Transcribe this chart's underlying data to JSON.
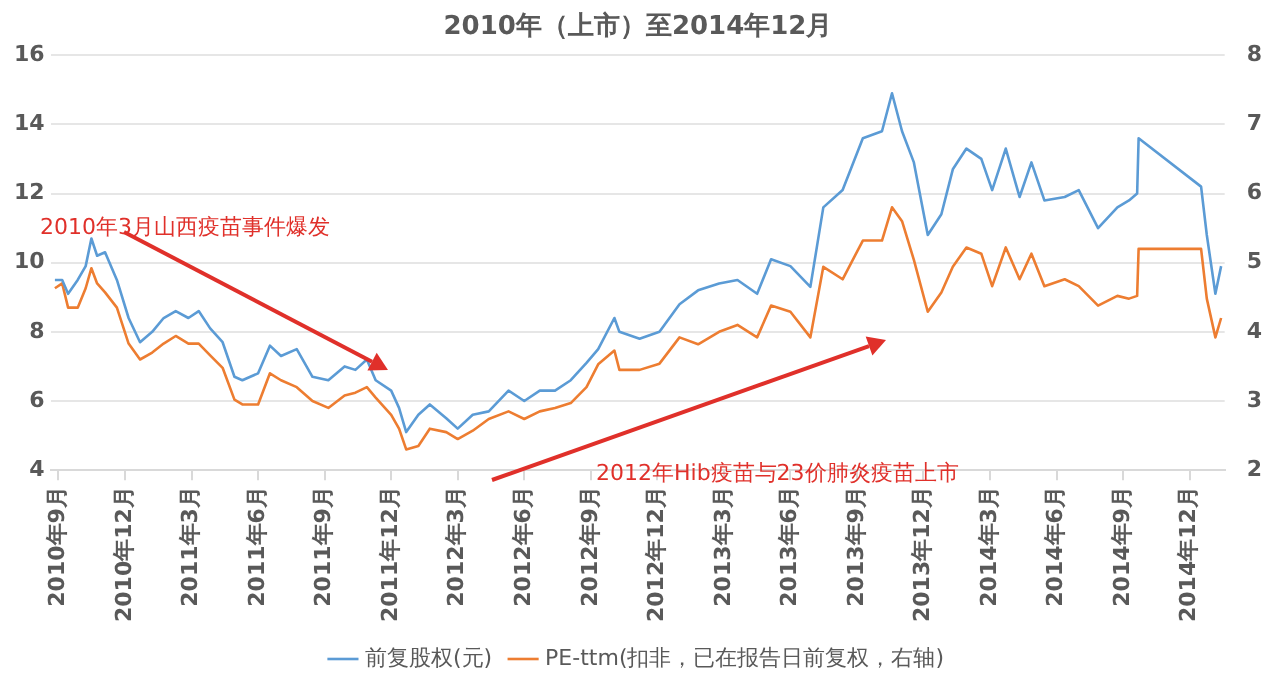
{
  "chart_data": {
    "type": "line",
    "title": "2010年（上市）至2014年12月",
    "annotations": [
      "2010年3月山西疫苗事件爆发",
      "2012年Hib疫苗与23价肺炎疫苗上市"
    ],
    "x": [
      "2010-08-27",
      "2010-09-06",
      "2010-09-14",
      "2010-09-27",
      "2010-10-08",
      "2010-10-16",
      "2010-10-24",
      "2010-11-04",
      "2010-11-20",
      "2010-12-06",
      "2010-12-22",
      "2011-01-08",
      "2011-01-24",
      "2011-02-09",
      "2011-02-25",
      "2011-03-11",
      "2011-03-27",
      "2011-04-13",
      "2011-04-29",
      "2011-05-10",
      "2011-06-01",
      "2011-06-17",
      "2011-07-02",
      "2011-07-24",
      "2011-08-15",
      "2011-09-06",
      "2011-09-28",
      "2011-10-13",
      "2011-10-29",
      "2011-11-10",
      "2011-12-01",
      "2011-12-12",
      "2011-12-22",
      "2012-01-08",
      "2012-01-24",
      "2012-02-15",
      "2012-03-01",
      "2012-03-22",
      "2012-04-13",
      "2012-05-10",
      "2012-06-01",
      "2012-06-22",
      "2012-07-13",
      "2012-08-04",
      "2012-08-26",
      "2012-09-11",
      "2012-10-03",
      "2012-10-10",
      "2012-11-07",
      "2012-12-04",
      "2013-01-01",
      "2013-01-27",
      "2013-02-23",
      "2013-03-20",
      "2013-04-16",
      "2013-05-05",
      "2013-06-01",
      "2013-06-28",
      "2013-07-16",
      "2013-08-12",
      "2013-09-09",
      "2013-10-05",
      "2013-10-19",
      "2013-11-02",
      "2013-11-18",
      "2013-12-07",
      "2013-12-26",
      "2014-01-11",
      "2014-01-30",
      "2014-02-18",
      "2014-03-04",
      "2014-03-23",
      "2014-04-11",
      "2014-04-27",
      "2014-05-15",
      "2014-06-12",
      "2014-07-01",
      "2014-07-28",
      "2014-08-24",
      "2014-09-09",
      "2014-09-20",
      "2014-09-22",
      "2014-11-05",
      "2014-12-17",
      "2014-12-25",
      "2015-01-06",
      "2015-01-14"
    ],
    "series": [
      {
        "name": "前复股权(元)",
        "color": "#5b9bd5",
        "values": [
          9.5,
          9.5,
          9.1,
          9.5,
          9.9,
          10.7,
          10.2,
          10.3,
          9.5,
          8.4,
          7.7,
          8.0,
          8.4,
          8.6,
          8.4,
          8.6,
          8.1,
          7.7,
          6.7,
          6.6,
          6.8,
          7.6,
          7.3,
          7.5,
          6.7,
          6.6,
          7.0,
          6.9,
          7.2,
          6.6,
          6.3,
          5.8,
          5.1,
          5.6,
          5.9,
          5.5,
          5.2,
          5.6,
          5.7,
          6.3,
          6.0,
          6.3,
          6.3,
          6.6,
          7.1,
          7.5,
          8.4,
          8.0,
          7.8,
          8.0,
          8.8,
          9.2,
          9.4,
          9.5,
          9.1,
          10.1,
          9.9,
          9.3,
          11.6,
          12.1,
          13.6,
          13.8,
          14.9,
          13.8,
          12.9,
          10.8,
          11.4,
          12.7,
          13.3,
          13.0,
          12.1,
          13.3,
          11.9,
          12.9,
          11.8,
          11.9,
          12.1,
          11.0,
          11.6,
          11.8,
          12.0,
          13.6,
          null,
          12.2,
          10.8,
          9.1,
          9.9
        ]
      },
      {
        "name": "PE-ttm(扣非，已在报告日前复权，右轴)",
        "color": "#ed7d31",
        "axis": "y2",
        "values": [
          4.63,
          4.7,
          4.35,
          4.35,
          4.63,
          4.92,
          4.7,
          4.57,
          4.35,
          3.83,
          3.6,
          3.7,
          3.83,
          3.94,
          3.83,
          3.83,
          3.66,
          3.48,
          3.02,
          2.95,
          2.95,
          3.4,
          3.3,
          3.2,
          3.0,
          2.9,
          3.08,
          3.12,
          3.2,
          3.05,
          2.8,
          2.6,
          2.3,
          2.35,
          2.6,
          2.55,
          2.45,
          2.57,
          2.74,
          2.85,
          2.74,
          2.85,
          2.9,
          2.97,
          3.2,
          3.53,
          3.73,
          3.45,
          3.45,
          3.54,
          3.92,
          3.82,
          4.0,
          4.1,
          3.92,
          4.38,
          4.29,
          3.92,
          4.94,
          4.76,
          5.32,
          5.32,
          5.8,
          5.6,
          5.04,
          4.29,
          4.57,
          4.94,
          5.22,
          5.13,
          4.66,
          5.22,
          4.76,
          5.13,
          4.66,
          4.76,
          4.66,
          4.38,
          4.52,
          4.48,
          4.52,
          5.2,
          null,
          5.2,
          4.48,
          3.92,
          4.2
        ]
      }
    ],
    "xlim": [
      "2010-08-21",
      "2015-01-19"
    ],
    "xticks": [
      {
        "value": "2010-09",
        "label": "2010年9月"
      },
      {
        "value": "2010-12",
        "label": "2010年12月"
      },
      {
        "value": "2011-03",
        "label": "2011年3月"
      },
      {
        "value": "2011-06",
        "label": "2011年6月"
      },
      {
        "value": "2011-09",
        "label": "2011年9月"
      },
      {
        "value": "2011-12",
        "label": "2011年12月"
      },
      {
        "value": "2012-03",
        "label": "2012年3月"
      },
      {
        "value": "2012-06",
        "label": "2012年6月"
      },
      {
        "value": "2012-09",
        "label": "2012年9月"
      },
      {
        "value": "2012-12",
        "label": "2012年12月"
      },
      {
        "value": "2013-03",
        "label": "2013年3月"
      },
      {
        "value": "2013-06",
        "label": "2013年6月"
      },
      {
        "value": "2013-09",
        "label": "2013年9月"
      },
      {
        "value": "2013-12",
        "label": "2013年12月"
      },
      {
        "value": "2014-03",
        "label": "2014年3月"
      },
      {
        "value": "2014-06",
        "label": "2014年6月"
      },
      {
        "value": "2014-09",
        "label": "2014年9月"
      },
      {
        "value": "2014-12",
        "label": "2014年12月"
      }
    ],
    "ylim": [
      4,
      16
    ],
    "yticks": [
      4,
      6,
      8,
      10,
      12,
      14,
      16
    ],
    "y2lim": [
      2,
      8
    ],
    "y2ticks": [
      2,
      3,
      4,
      5,
      6,
      7,
      8
    ],
    "grid": "y",
    "legend": "bottom",
    "marker": "none",
    "line_style": "solid"
  }
}
